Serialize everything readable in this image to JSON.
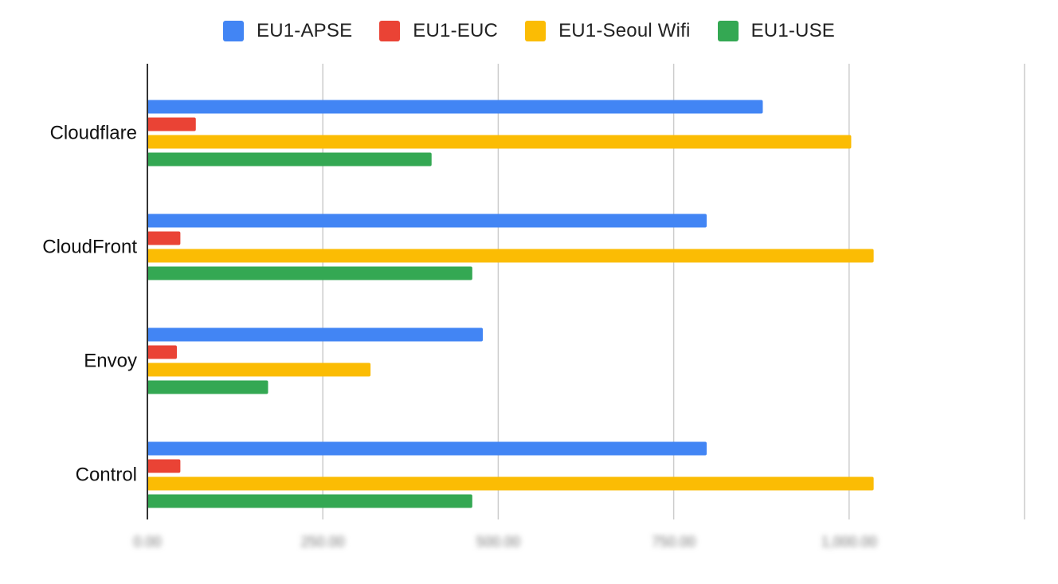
{
  "chart_data": {
    "type": "bar",
    "orientation": "horizontal",
    "categories": [
      "Cloudflare",
      "CloudFront",
      "Envoy",
      "Control"
    ],
    "series": [
      {
        "name": "EU1-APSE",
        "color": "#4285F4",
        "values": [
          877,
          797,
          478,
          797
        ]
      },
      {
        "name": "EU1-EUC",
        "color": "#EA4335",
        "values": [
          69,
          47,
          42,
          47
        ]
      },
      {
        "name": "EU1-Seoul Wifi",
        "color": "#FBBC04",
        "values": [
          1003,
          1035,
          318,
          1035
        ]
      },
      {
        "name": "EU1-USE",
        "color": "#34A853",
        "values": [
          405,
          463,
          172,
          463
        ]
      }
    ],
    "xlim": [
      0,
      1250
    ],
    "xticks": [
      0,
      250,
      500,
      750,
      1000,
      1250
    ],
    "xtick_labels": [
      "0.00",
      "250.00",
      "500.00",
      "750.00",
      "1,000.00",
      ""
    ],
    "grid": true,
    "legend": "top-center",
    "title": "",
    "xlabel": "",
    "ylabel": ""
  }
}
